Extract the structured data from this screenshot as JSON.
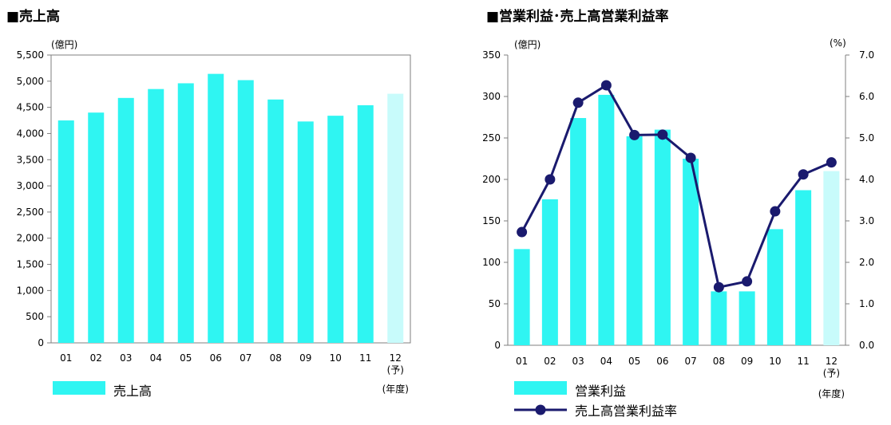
{
  "chart_data": [
    {
      "type": "bar",
      "title": "■売上高",
      "ylabel": "(億円)",
      "xlabel": "(年度)",
      "ylim": [
        0,
        5500
      ],
      "yticks": [
        "0",
        "500",
        "1,000",
        "1,500",
        "2,000",
        "2,500",
        "3,000",
        "3,500",
        "4,000",
        "4,500",
        "5,000",
        "5,500"
      ],
      "categories": [
        "01",
        "02",
        "03",
        "04",
        "05",
        "06",
        "07",
        "08",
        "09",
        "10",
        "11",
        "12"
      ],
      "category_sublabels": {
        "12": "(予)"
      },
      "series": [
        {
          "name": "売上高",
          "values": [
            4250,
            4400,
            4680,
            4850,
            4960,
            5140,
            5020,
            4650,
            4230,
            4340,
            4540,
            4760
          ]
        }
      ],
      "forecast_index": 11,
      "legend_position": "bottom-left",
      "grid": false,
      "colors": {
        "bar": "#2FF5F2",
        "forecast": "#C8FBFB"
      }
    },
    {
      "type": "bar+line",
      "title": "■営業利益･売上高営業利益率",
      "ylabel": "(億円)",
      "y2label": "(%)",
      "xlabel": "(年度)",
      "ylim": [
        0,
        350
      ],
      "y2lim": [
        0.0,
        7.0
      ],
      "yticks": [
        "0",
        "50",
        "100",
        "150",
        "200",
        "250",
        "300",
        "350"
      ],
      "y2ticks": [
        "0.0",
        "1.0",
        "2.0",
        "3.0",
        "4.0",
        "5.0",
        "6.0",
        "7.0"
      ],
      "categories": [
        "01",
        "02",
        "03",
        "04",
        "05",
        "06",
        "07",
        "08",
        "09",
        "10",
        "11",
        "12"
      ],
      "category_sublabels": {
        "12": "(予)"
      },
      "series": [
        {
          "name": "営業利益",
          "type": "bar",
          "axis": "left",
          "values": [
            116,
            176,
            274,
            302,
            252,
            260,
            225,
            65,
            65,
            140,
            187,
            210
          ]
        },
        {
          "name": "売上高営業利益率",
          "type": "line",
          "axis": "right",
          "values": [
            2.73,
            4.0,
            5.85,
            6.27,
            5.07,
            5.08,
            4.52,
            1.4,
            1.54,
            3.23,
            4.12,
            4.41
          ]
        }
      ],
      "forecast_index": 11,
      "legend_position": "bottom-left",
      "grid": false,
      "colors": {
        "bar": "#2FF5F2",
        "forecast": "#C8FBFB",
        "line": "#1A1A6E"
      }
    }
  ]
}
